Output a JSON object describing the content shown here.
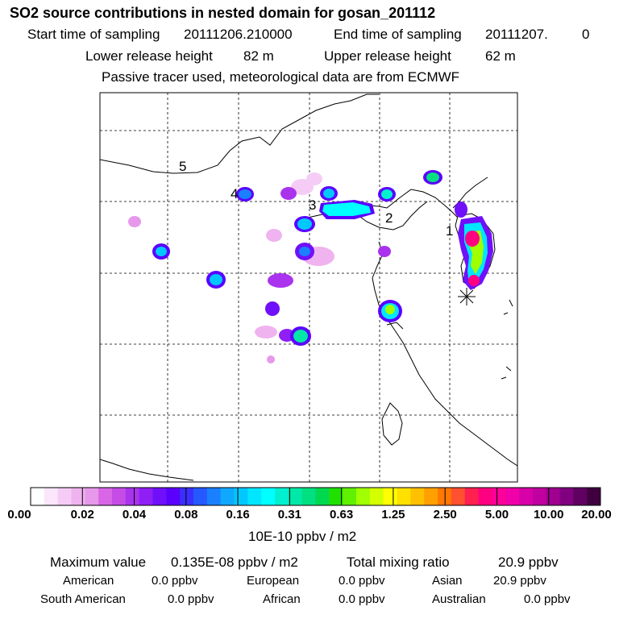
{
  "title": "SO2 source contributions in nested domain for gosan_201112",
  "sampling": {
    "start_label": "Start time of sampling",
    "start_value": "20111206.210000",
    "end_label": "End time of sampling",
    "end_value": "20111207.",
    "end_extra": "0"
  },
  "release": {
    "lower_label": "Lower release height",
    "lower_value": "82 m",
    "upper_label": "Upper release height",
    "upper_value": "62 m"
  },
  "note": "Passive tracer used, meteorological data are from ECMWF",
  "map_labels": [
    "1",
    "2",
    "3",
    "4",
    "5"
  ],
  "colorbar": {
    "ticks": [
      "0.00",
      "0.02",
      "0.04",
      "0.08",
      "0.16",
      "0.31",
      "0.63",
      "1.25",
      "2.50",
      "5.00",
      "10.00",
      "20.00"
    ],
    "colors": [
      "#ffffff",
      "#fbe6fb",
      "#f5ccf5",
      "#efb3ef",
      "#e699ea",
      "#d966e6",
      "#c54de6",
      "#aa33ee",
      "#8f1ff5",
      "#7010fa",
      "#5a00ff",
      "#3b2fff",
      "#2459ff",
      "#1a80ff",
      "#10a8ff",
      "#00c8ff",
      "#00e6ff",
      "#00ffff",
      "#00f0d0",
      "#00e8a8",
      "#00e080",
      "#00d850",
      "#20e000",
      "#60f000",
      "#a0ff00",
      "#d4ff00",
      "#ffff00",
      "#ffe000",
      "#ffc000",
      "#ffa000",
      "#ff7800",
      "#ff5030",
      "#ff2050",
      "#ff0080",
      "#ff0099",
      "#f000a8",
      "#d800a8",
      "#c000a0",
      "#a00090",
      "#800080",
      "#600060",
      "#400040"
    ],
    "unit": "10E-10 ppbv / m2"
  },
  "stats": {
    "max_label": "Maximum value",
    "max_value": "0.135E-08 ppbv / m2",
    "total_label": "Total mixing ratio",
    "total_value": "20.9 ppbv",
    "regions": [
      {
        "name": "American",
        "value": "0.0 ppbv"
      },
      {
        "name": "European",
        "value": "0.0 ppbv"
      },
      {
        "name": "Asian",
        "value": "20.9 ppbv"
      },
      {
        "name": "South American",
        "value": "0.0 ppbv"
      },
      {
        "name": "African",
        "value": "0.0 ppbv"
      },
      {
        "name": "Australian",
        "value": "0.0 ppbv"
      }
    ]
  }
}
